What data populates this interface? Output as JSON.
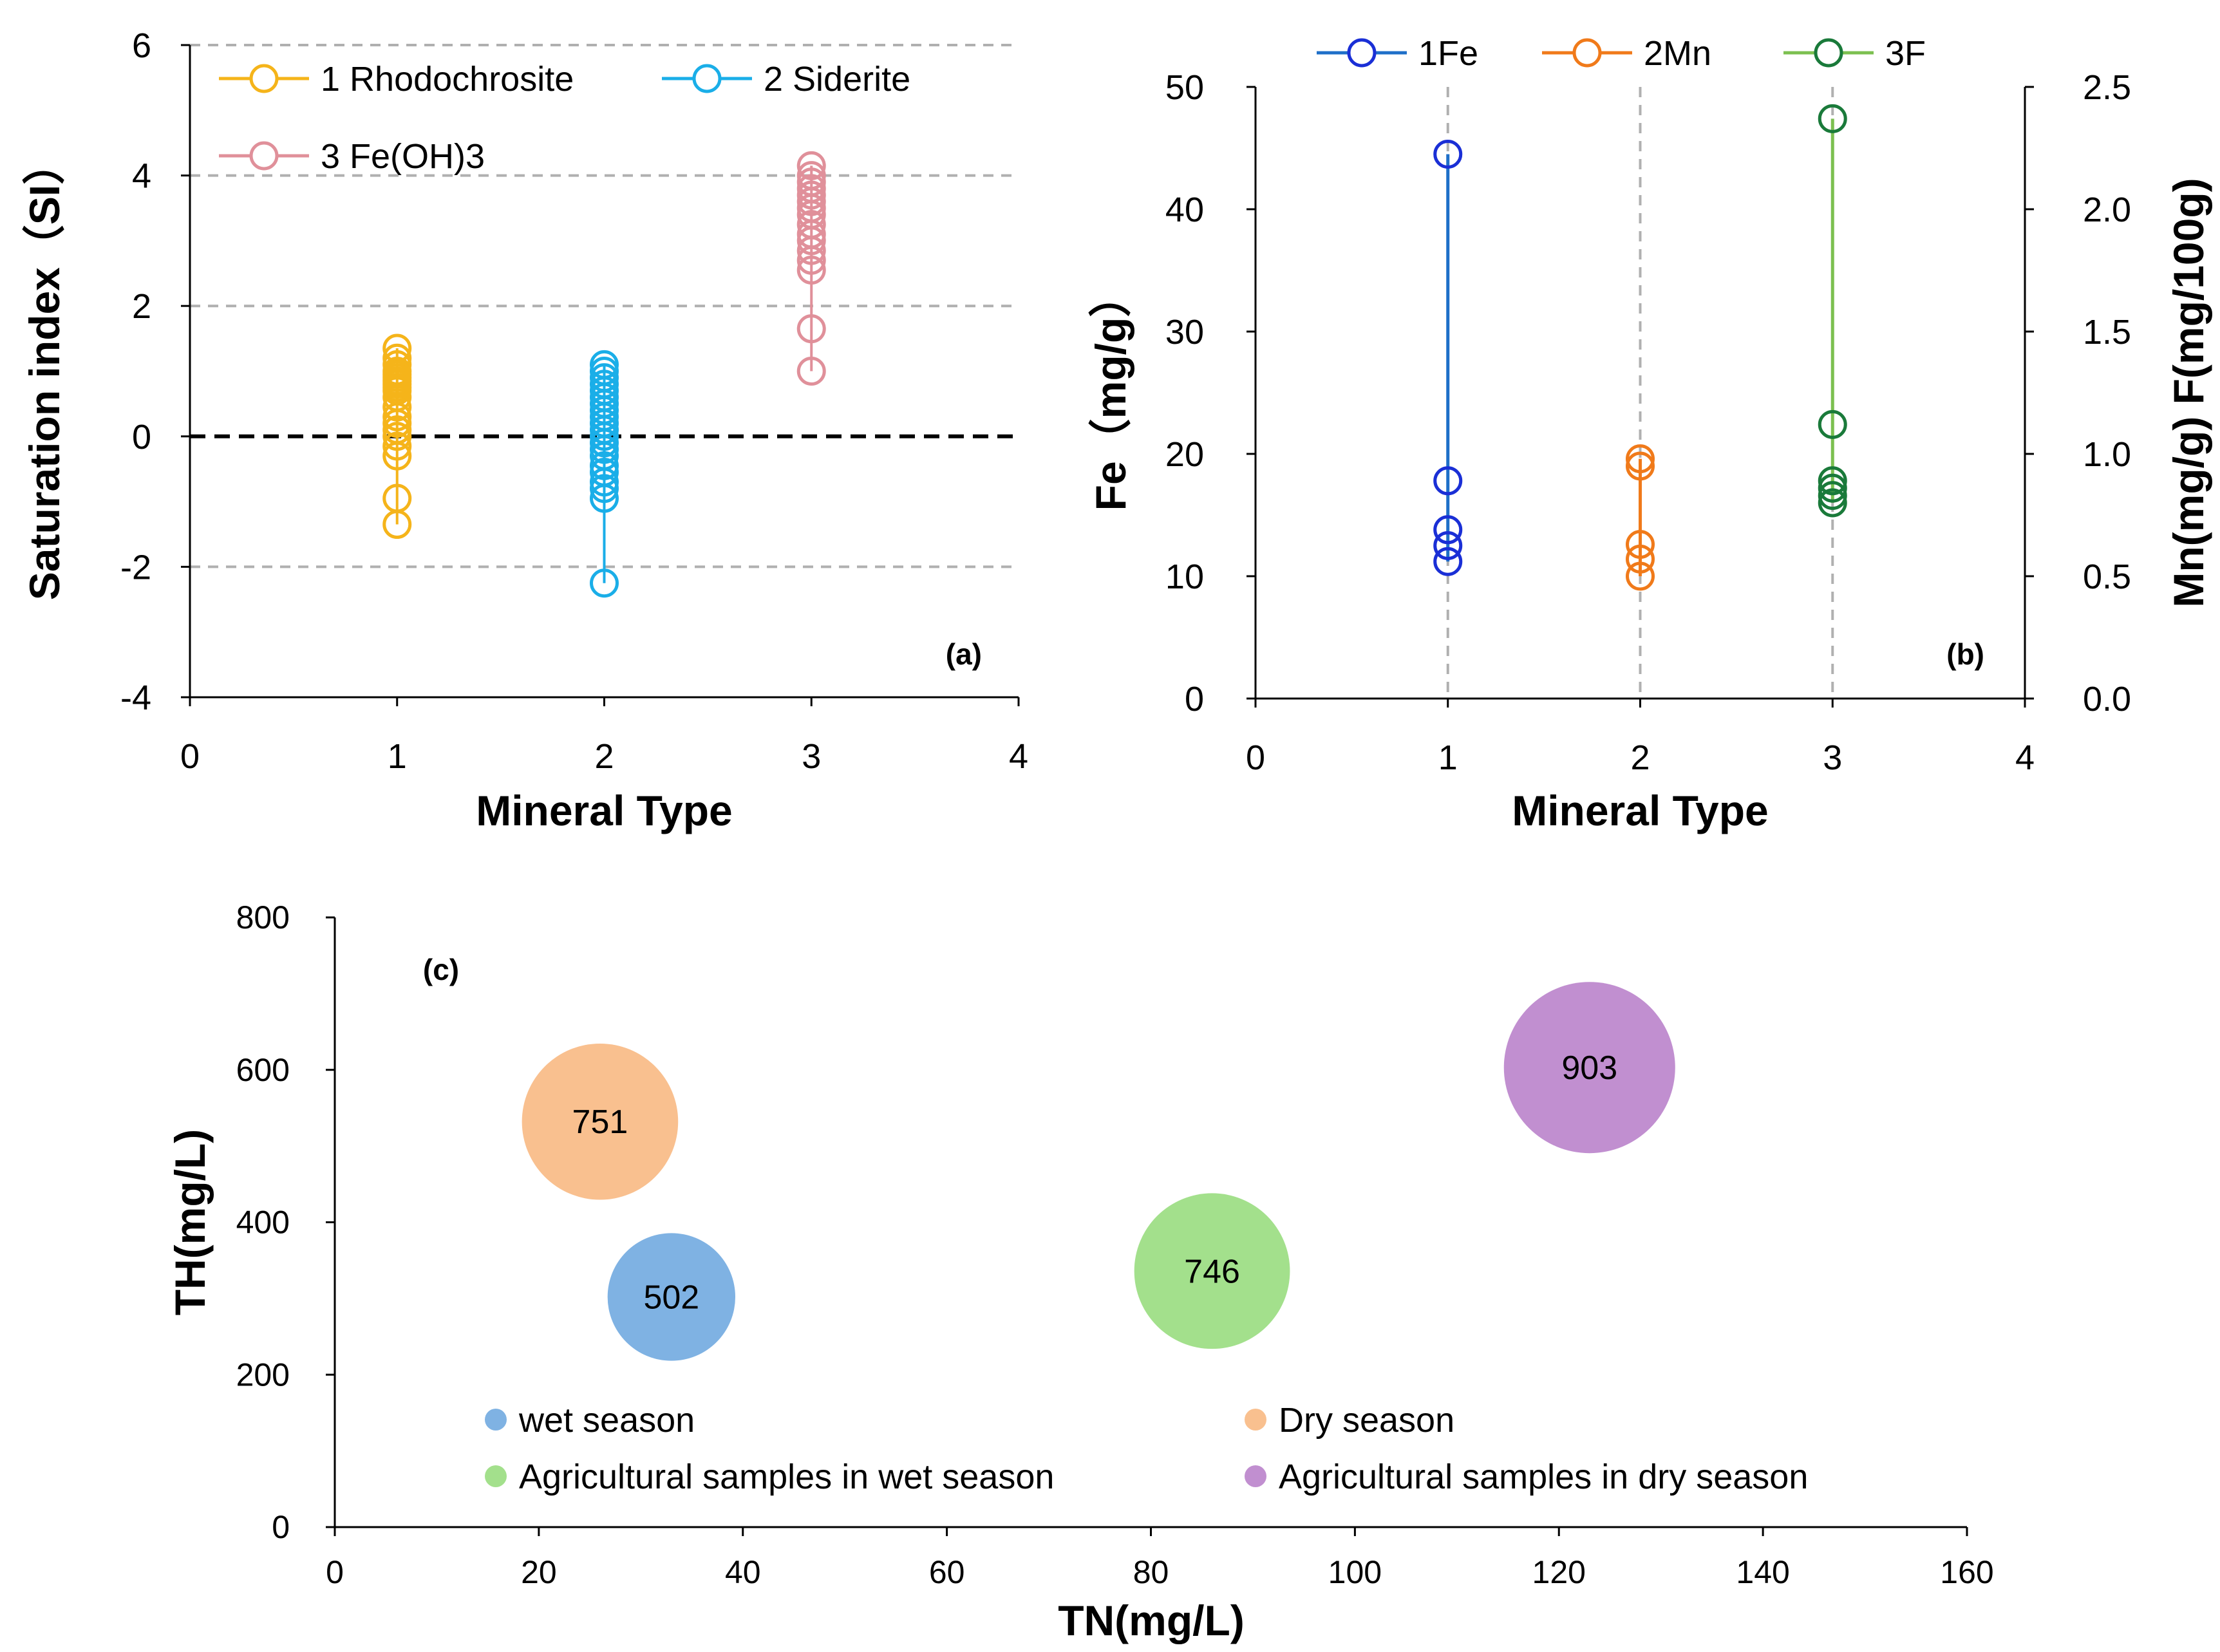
{
  "chart_data": [
    {
      "panel": "a",
      "panel_label": "(a)",
      "type": "scatter",
      "xlabel": "Mineral Type",
      "ylabel": "Saturation index（SI）",
      "xlim": [
        0,
        4
      ],
      "ylim": [
        -4,
        6
      ],
      "xticks": [
        "0",
        "1",
        "2",
        "3",
        "4"
      ],
      "yticks": [
        "-4",
        "-2",
        "0",
        "2",
        "4",
        "6"
      ],
      "grid": "horizontal dashed at -2, 2, 4, 6",
      "reference_line": 0,
      "legend_position": "top-left",
      "series": [
        {
          "name": "1 Rhodochrosite",
          "color": "#F5B41A",
          "x": 1,
          "values": [
            1.35,
            1.2,
            1.1,
            1.0,
            0.95,
            0.9,
            0.85,
            0.8,
            0.75,
            0.7,
            0.6,
            0.45,
            0.3,
            0.2,
            0.1,
            0.0,
            -0.15,
            -0.3,
            -0.95,
            -1.35
          ]
        },
        {
          "name": "2 Siderite",
          "color": "#1AAEE8",
          "x": 2,
          "values": [
            1.1,
            1.0,
            0.9,
            0.8,
            0.7,
            0.6,
            0.5,
            0.4,
            0.3,
            0.2,
            0.1,
            0.0,
            -0.1,
            -0.2,
            -0.3,
            -0.45,
            -0.55,
            -0.7,
            -0.8,
            -0.95,
            -2.25
          ]
        },
        {
          "name": "3 Fe(OH)3",
          "color": "#E0909A",
          "x": 3,
          "values": [
            4.15,
            4.0,
            3.9,
            3.8,
            3.7,
            3.6,
            3.5,
            3.4,
            3.25,
            3.1,
            3.0,
            2.85,
            2.7,
            2.55,
            1.65,
            1.0
          ]
        }
      ]
    },
    {
      "panel": "b",
      "panel_label": "(b)",
      "type": "scatter",
      "xlabel": "Mineral Type",
      "ylabel_left": "Fe（mg/g）",
      "ylabel_right": "Mn(mg/g)  F(mg/100g)",
      "xlim": [
        0,
        4
      ],
      "ylim_left": [
        0,
        50
      ],
      "ylim_right": [
        0,
        2.5
      ],
      "xticks": [
        "0",
        "1",
        "2",
        "3",
        "4"
      ],
      "yticks_left": [
        "0",
        "10",
        "20",
        "30",
        "40",
        "50"
      ],
      "yticks_right": [
        "0.0",
        "0.5",
        "1.0",
        "1.5",
        "2.0",
        "2.5"
      ],
      "grid": "vertical dashed at x = 1, 2, 3",
      "legend_position": "top",
      "series": [
        {
          "name": "1Fe",
          "color": "#1A2FD6",
          "line_color": "#1E6FC8",
          "x": 1,
          "axis": "left",
          "values": [
            44.5,
            17.8,
            13.8,
            12.5,
            11.2
          ]
        },
        {
          "name": "2Mn",
          "color": "#F07A1A",
          "line_color": "#F07A1A",
          "x": 2,
          "axis": "right",
          "values": [
            0.98,
            0.95,
            0.63,
            0.57,
            0.5
          ]
        },
        {
          "name": "3F",
          "color": "#1A7A3A",
          "line_color": "#7CC050",
          "x": 3,
          "axis": "right",
          "values": [
            2.37,
            1.12,
            0.89,
            0.86,
            0.83,
            0.8
          ]
        }
      ]
    },
    {
      "panel": "c",
      "panel_label": "(c)",
      "type": "bubble",
      "xlabel": "TN(mg/L)",
      "ylabel": "TH(mg/L)",
      "xlim": [
        0,
        160
      ],
      "ylim": [
        0,
        800
      ],
      "xticks": [
        "0",
        "20",
        "40",
        "60",
        "80",
        "100",
        "120",
        "140",
        "160"
      ],
      "yticks": [
        "0",
        "200",
        "400",
        "600",
        "800"
      ],
      "legend_position": "bottom",
      "series": [
        {
          "name": "wet season",
          "x": 33,
          "y": 302,
          "size": 502,
          "label": "502",
          "color": "#7FB2E3"
        },
        {
          "name": "Dry season",
          "x": 26,
          "y": 532,
          "size": 751,
          "label": "751",
          "color": "#F9C08F"
        },
        {
          "name": "Agricultural samples in wet season",
          "x": 86,
          "y": 336,
          "size": 746,
          "label": "746",
          "color": "#A3E08C"
        },
        {
          "name": "Agricultural samples in dry season",
          "x": 123,
          "y": 603,
          "size": 903,
          "label": "903",
          "color": "#C18FD0"
        }
      ]
    }
  ]
}
